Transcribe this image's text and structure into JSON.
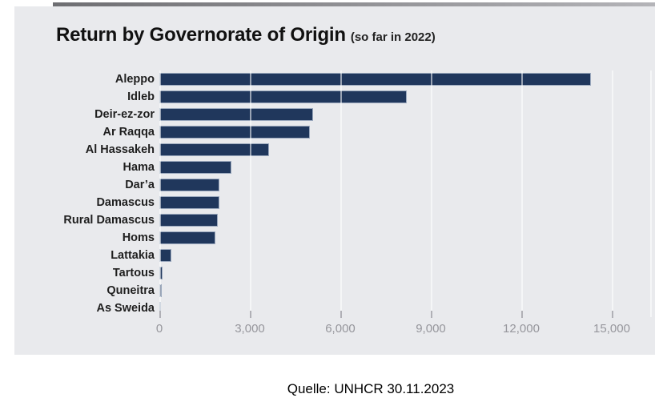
{
  "title": {
    "text": "Return by Governorate of Origin",
    "suffix": "(so far in 2022)"
  },
  "caption": "Quelle: UNHCR 30.11.2023",
  "colors": {
    "card_background": "#e9eaed",
    "bar_fill": "#20375c",
    "bar_border": "#9aa8bd",
    "axis_label": "#96969c",
    "top_border": "#8e8e92"
  },
  "chart_data": {
    "type": "bar",
    "orientation": "horizontal",
    "title": "Return by Governorate of Origin (so far in 2022)",
    "xlabel": "",
    "ylabel": "",
    "categories": [
      "Aleppo",
      "Idleb",
      "Deir-ez-zor",
      "Ar Raqqa",
      "Al Hassakeh",
      "Hama",
      "Dar’a",
      "Damascus",
      "Rural Damascus",
      "Homs",
      "Lattakia",
      "Tartous",
      "Quneitra",
      "As Sweida"
    ],
    "values": [
      14300,
      8200,
      5100,
      5000,
      3650,
      2400,
      2000,
      2000,
      1950,
      1850,
      400,
      110,
      90,
      40
    ],
    "xlim": [
      0,
      16300
    ],
    "x_ticks": [
      0,
      3000,
      6000,
      9000,
      12000,
      15000
    ],
    "x_tick_labels": [
      "0",
      "3,000",
      "6,000",
      "9,000",
      "12,000",
      "15,000"
    ],
    "grid": true,
    "legend": "none",
    "source": "Quelle: UNHCR 30.11.2023"
  }
}
